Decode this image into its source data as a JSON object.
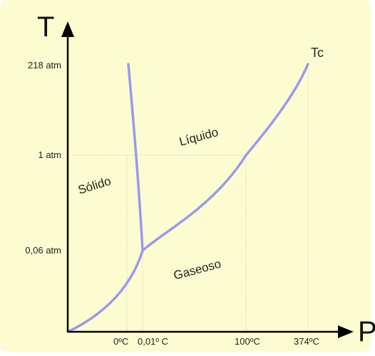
{
  "axes": {
    "y_letter": "T",
    "x_letter": "P"
  },
  "y_ticks": [
    "218 atm",
    "1 atm",
    "0,06 atm"
  ],
  "x_ticks": [
    "0ºC",
    "0,01º C",
    "100ºC",
    "374ºC"
  ],
  "regions": {
    "solid": "Sólido",
    "liquid": "Líquido",
    "gas": "Gaseoso"
  },
  "critical_point": "Tc",
  "colors": {
    "background": "#fdfcd1",
    "curve": "#9999ee",
    "axis": "#000000",
    "guide": "#bbbbbb"
  }
}
